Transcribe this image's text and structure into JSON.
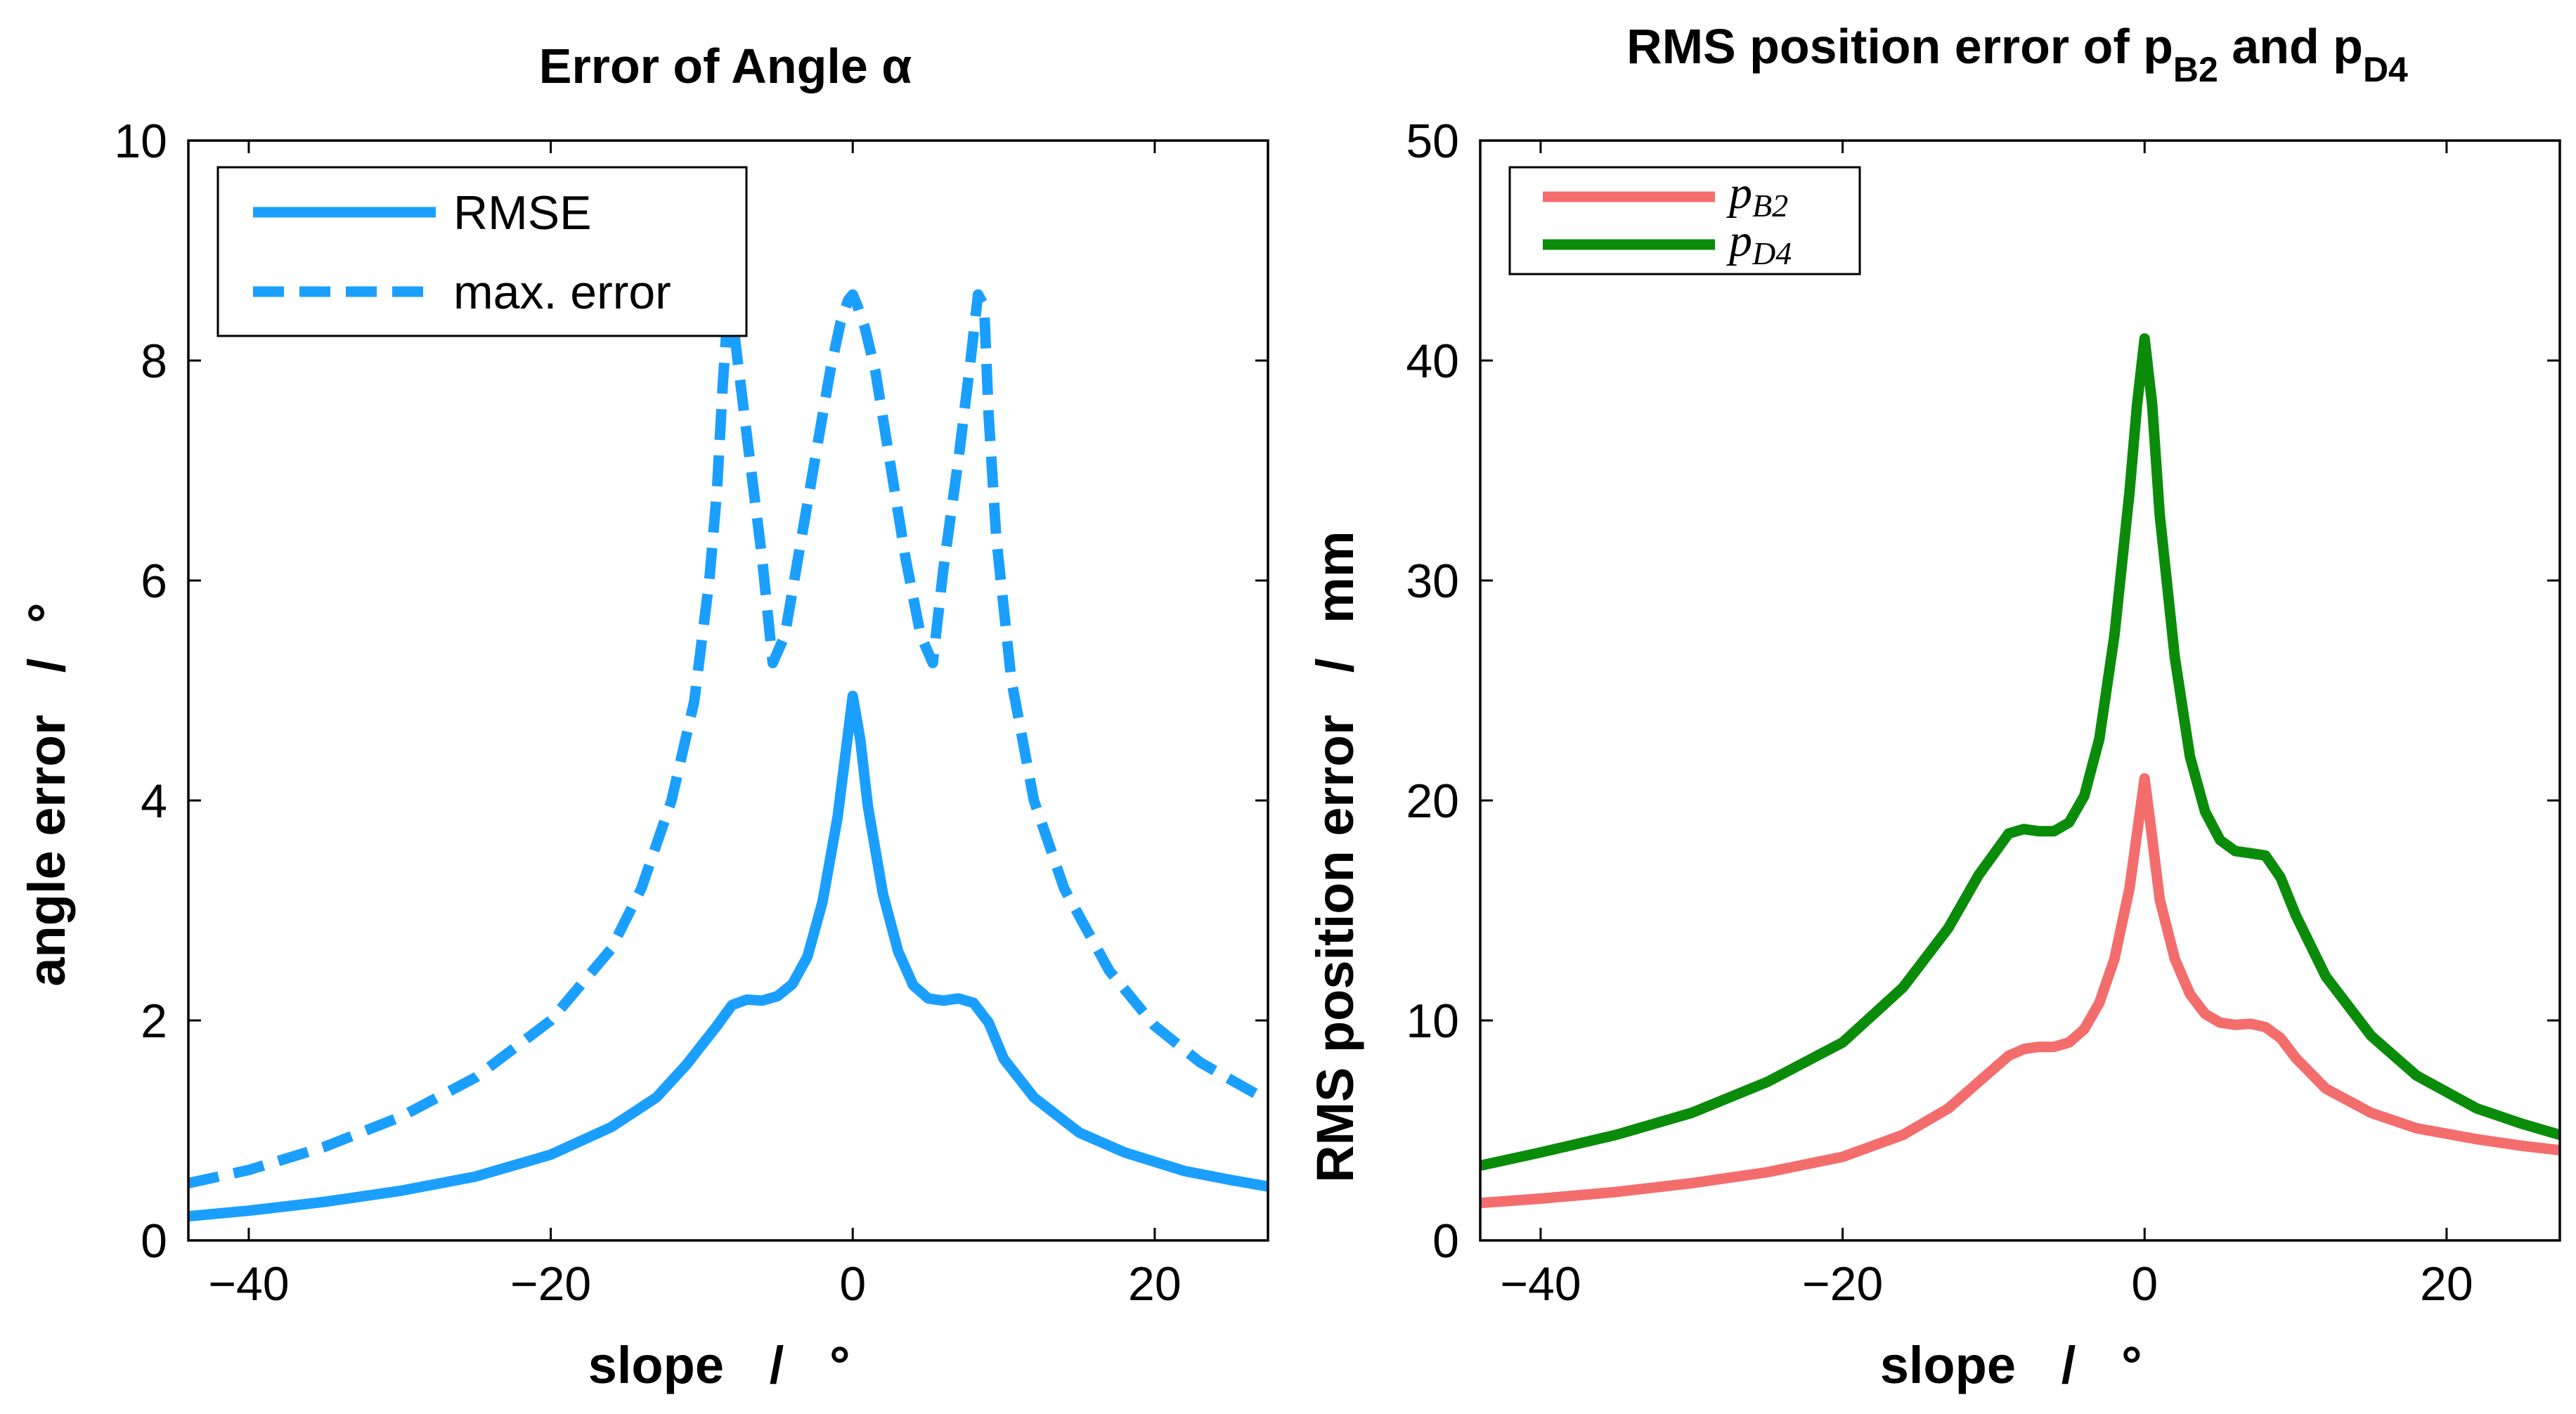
{
  "chart_data": [
    {
      "type": "line",
      "title": "Error of Angle α",
      "xlabel": "slope",
      "xunit": "°",
      "ylabel": "angle error",
      "yunit": "°",
      "xlim": [
        -44,
        27.5
      ],
      "ylim": [
        0,
        10
      ],
      "xticks": [
        -40,
        -20,
        0,
        20
      ],
      "yticks": [
        0,
        2,
        4,
        6,
        8,
        10
      ],
      "legend_position": "top-left",
      "series": [
        {
          "name": "RMSE",
          "color": "#1a9fff",
          "style": "solid",
          "x": [
            -44,
            -40,
            -35,
            -30,
            -25,
            -20,
            -16,
            -13,
            -11,
            -9,
            -8,
            -7,
            -6,
            -5,
            -4,
            -3,
            -2,
            -1,
            -0.5,
            0,
            0.5,
            1,
            2,
            3,
            4,
            5,
            6,
            7,
            8,
            9,
            10,
            12,
            15,
            18,
            22,
            25,
            27.5
          ],
          "y": [
            0.22,
            0.27,
            0.35,
            0.45,
            0.58,
            0.78,
            1.03,
            1.3,
            1.6,
            1.95,
            2.14,
            2.19,
            2.18,
            2.22,
            2.33,
            2.58,
            3.08,
            3.85,
            4.4,
            4.95,
            4.55,
            3.95,
            3.15,
            2.63,
            2.32,
            2.2,
            2.18,
            2.2,
            2.16,
            1.98,
            1.65,
            1.3,
            0.98,
            0.8,
            0.63,
            0.55,
            0.49
          ]
        },
        {
          "name": "max. error",
          "color": "#1a9fff",
          "style": "dashed",
          "x": [
            -44,
            -40,
            -35,
            -30,
            -25,
            -20,
            -16,
            -14,
            -12,
            -10.5,
            -9.5,
            -9,
            -8.6,
            -8.2,
            -7.8,
            -7,
            -6,
            -5.3,
            -4.5,
            -3.5,
            -2.5,
            -1.5,
            -0.8,
            -0.3,
            0,
            0.3,
            0.8,
            1.5,
            2.5,
            3.5,
            4.5,
            5.3,
            6,
            7,
            7.8,
            8.3,
            8.7,
            9,
            9.5,
            10.5,
            12,
            14,
            17,
            20,
            23,
            27.5
          ],
          "y": [
            0.52,
            0.64,
            0.85,
            1.12,
            1.48,
            2.0,
            2.65,
            3.2,
            4.0,
            4.9,
            6.0,
            6.8,
            7.8,
            8.6,
            8.2,
            7.3,
            6.2,
            5.25,
            5.5,
            6.3,
            7.1,
            7.9,
            8.35,
            8.55,
            8.6,
            8.5,
            8.3,
            7.9,
            7.05,
            6.2,
            5.5,
            5.25,
            6.1,
            7.1,
            8.0,
            8.6,
            8.5,
            7.5,
            6.4,
            5.1,
            4.0,
            3.2,
            2.45,
            1.95,
            1.62,
            1.27
          ]
        }
      ]
    },
    {
      "type": "line",
      "title": "RMS position error of p",
      "title_sub1": "B2",
      "title_mid": " and p",
      "title_sub2": "D4",
      "xlabel": "slope",
      "xunit": "°",
      "ylabel": "RMS position error",
      "yunit": "mm",
      "xlim": [
        -44,
        27.5
      ],
      "ylim": [
        0,
        50
      ],
      "xticks": [
        -40,
        -20,
        0,
        20
      ],
      "yticks": [
        0,
        10,
        20,
        30,
        40,
        50
      ],
      "legend_position": "top-left",
      "series": [
        {
          "name": "p",
          "name_sub": "B2",
          "color": "#f46d6d",
          "style": "solid",
          "x": [
            -44,
            -40,
            -35,
            -30,
            -25,
            -20,
            -16,
            -13,
            -11,
            -9,
            -8,
            -7,
            -6,
            -5,
            -4,
            -3,
            -2,
            -1,
            -0.5,
            0,
            0.5,
            1,
            2,
            3,
            4,
            5,
            6,
            7,
            8,
            9,
            10,
            12,
            15,
            18,
            22,
            25,
            27.5
          ],
          "y": [
            1.7,
            1.9,
            2.2,
            2.6,
            3.1,
            3.8,
            4.8,
            6.0,
            7.2,
            8.4,
            8.7,
            8.8,
            8.8,
            9.0,
            9.6,
            10.8,
            12.8,
            16.0,
            18.5,
            21.0,
            18.3,
            15.5,
            12.8,
            11.2,
            10.3,
            9.9,
            9.8,
            9.85,
            9.7,
            9.2,
            8.3,
            6.9,
            5.8,
            5.1,
            4.6,
            4.3,
            4.1
          ]
        },
        {
          "name": "p",
          "name_sub": "D4",
          "color": "#0a8c0a",
          "style": "solid",
          "x": [
            -44,
            -40,
            -35,
            -30,
            -25,
            -20,
            -16,
            -13,
            -11,
            -9,
            -8,
            -7,
            -6,
            -5,
            -4,
            -3,
            -2,
            -1,
            -0.5,
            0,
            0.5,
            1,
            2,
            3,
            4,
            5,
            6,
            7,
            8,
            9,
            10,
            12,
            15,
            18,
            22,
            25,
            27.5
          ],
          "y": [
            3.4,
            4.0,
            4.8,
            5.8,
            7.2,
            9.0,
            11.5,
            14.2,
            16.6,
            18.5,
            18.7,
            18.6,
            18.6,
            19.0,
            20.2,
            22.8,
            27.5,
            34.0,
            38.0,
            41.0,
            38.0,
            33.0,
            26.5,
            22.0,
            19.5,
            18.2,
            17.7,
            17.6,
            17.5,
            16.5,
            14.8,
            12.0,
            9.3,
            7.5,
            6.0,
            5.3,
            4.8
          ]
        }
      ]
    }
  ]
}
